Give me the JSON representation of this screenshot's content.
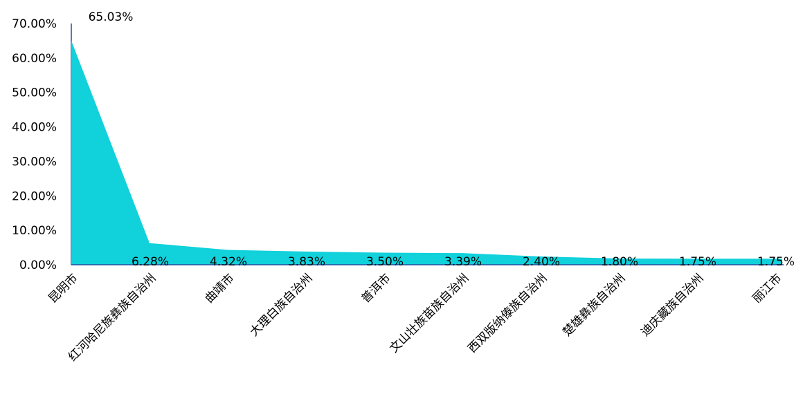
{
  "chart_data": {
    "type": "area",
    "categories": [
      "昆明市",
      "红河哈尼族彝族自治州",
      "曲靖市",
      "大理白族自治州",
      "普洱市",
      "文山壮族苗族自治州",
      "西双版纳傣族自治州",
      "楚雄彝族自治州",
      "迪庆藏族自治州",
      "丽江市"
    ],
    "values": [
      65.03,
      6.28,
      4.32,
      3.83,
      3.5,
      3.39,
      2.4,
      1.8,
      1.75,
      1.75
    ],
    "data_labels": [
      "65.03%",
      "6.28%",
      "4.32%",
      "3.83%",
      "3.50%",
      "3.39%",
      "2.40%",
      "1.80%",
      "1.75%",
      "1.75%"
    ],
    "y_ticks": [
      "0.00%",
      "10.00%",
      "20.00%",
      "30.00%",
      "40.00%",
      "50.00%",
      "60.00%",
      "70.00%"
    ],
    "ylim": [
      0,
      70
    ],
    "title": "",
    "xlabel": "",
    "ylabel": "",
    "grid": false,
    "legend": "none",
    "colors": {
      "fill": "#11D1DB",
      "axis": "#1F4E9C",
      "text": "#000000"
    }
  }
}
